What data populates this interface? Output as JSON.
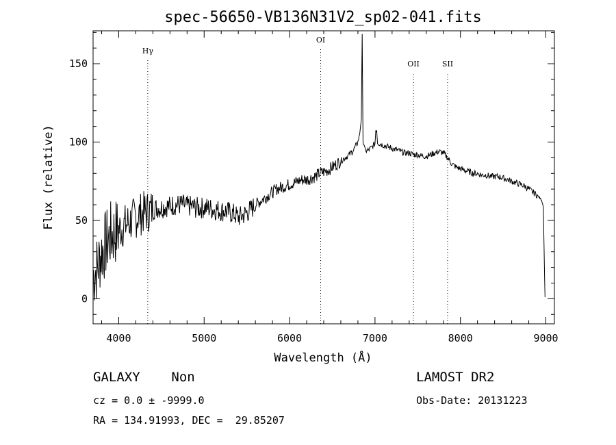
{
  "chart_data": {
    "type": "line",
    "title": "spec-56650-VB136N31V2_sp02-041.fits",
    "xlabel": "Wavelength (Å)",
    "ylabel": "Flux (relative)",
    "xlim": [
      3700,
      9100
    ],
    "ylim": [
      -16,
      171
    ],
    "xticks": [
      4000,
      5000,
      6000,
      7000,
      8000,
      9000
    ],
    "yticks": [
      0,
      50,
      100,
      150
    ],
    "grid": false,
    "lines": [
      {
        "label": "Hγ",
        "x": 4340
      },
      {
        "label": "OI",
        "x": 6364
      },
      {
        "label": "OII",
        "x": 7450
      },
      {
        "label": "SII",
        "x": 7850
      }
    ],
    "series": [
      {
        "x": [
          3700,
          3750,
          3800,
          3850,
          3900,
          3950,
          4000,
          4050,
          4100,
          4150,
          4200,
          4250,
          4300,
          4350,
          4400,
          4450,
          4500,
          4550,
          4600,
          4650,
          4700,
          4750,
          4800,
          4850,
          4900,
          4950,
          5000,
          5050,
          5100,
          5150,
          5200,
          5250,
          5300,
          5350,
          5400,
          5450,
          5500,
          5550,
          5600,
          5650,
          5700,
          5750,
          5800,
          5850,
          5900,
          5950,
          6000,
          6050,
          6100,
          6150,
          6200,
          6250,
          6300,
          6350,
          6400,
          6450,
          6500,
          6550,
          6600,
          6650,
          6700,
          6750,
          6800,
          6820,
          6840,
          6850,
          6860,
          6880,
          6900,
          6950,
          7000,
          7010,
          7020,
          7030,
          7050,
          7100,
          7150,
          7200,
          7250,
          7300,
          7350,
          7400,
          7450,
          7500,
          7550,
          7600,
          7650,
          7700,
          7750,
          7800,
          7850,
          7900,
          7950,
          8000,
          8050,
          8100,
          8150,
          8200,
          8250,
          8300,
          8350,
          8400,
          8450,
          8500,
          8550,
          8600,
          8650,
          8700,
          8750,
          8800,
          8850,
          8900,
          8950,
          8970,
          8980,
          8990
        ],
        "y": [
          15,
          20,
          30,
          35,
          40,
          42,
          44,
          46,
          48,
          50,
          52,
          54,
          55,
          56,
          57,
          58,
          58,
          59,
          59,
          60,
          60,
          60,
          59,
          59,
          58,
          58,
          58,
          58,
          57,
          57,
          56,
          56,
          55,
          54,
          52,
          53,
          55,
          57,
          60,
          62,
          64,
          66,
          68,
          70,
          71,
          72,
          73,
          74,
          75,
          76,
          76,
          77,
          78,
          80,
          81,
          82,
          84,
          86,
          88,
          90,
          92,
          95,
          100,
          105,
          115,
          168,
          100,
          96,
          94,
          96,
          99,
          108,
          108,
          100,
          99,
          98,
          97,
          96,
          95,
          94,
          93,
          93,
          92,
          92,
          91,
          91,
          92,
          93,
          94,
          93,
          90,
          86,
          84,
          83,
          82,
          81,
          80,
          80,
          79,
          79,
          78,
          78,
          78,
          77,
          76,
          75,
          74,
          73,
          72,
          70,
          68,
          66,
          63,
          59,
          30,
          1
        ]
      }
    ]
  },
  "info": {
    "class_line": "GALAXY    Non",
    "cz_line": "cz = 0.0 ± -9999.0",
    "radec_line": "RA = 134.91993, DEC =  29.85207",
    "survey": "LAMOST DR2",
    "obsdate": "Obs-Date: 20131223"
  }
}
